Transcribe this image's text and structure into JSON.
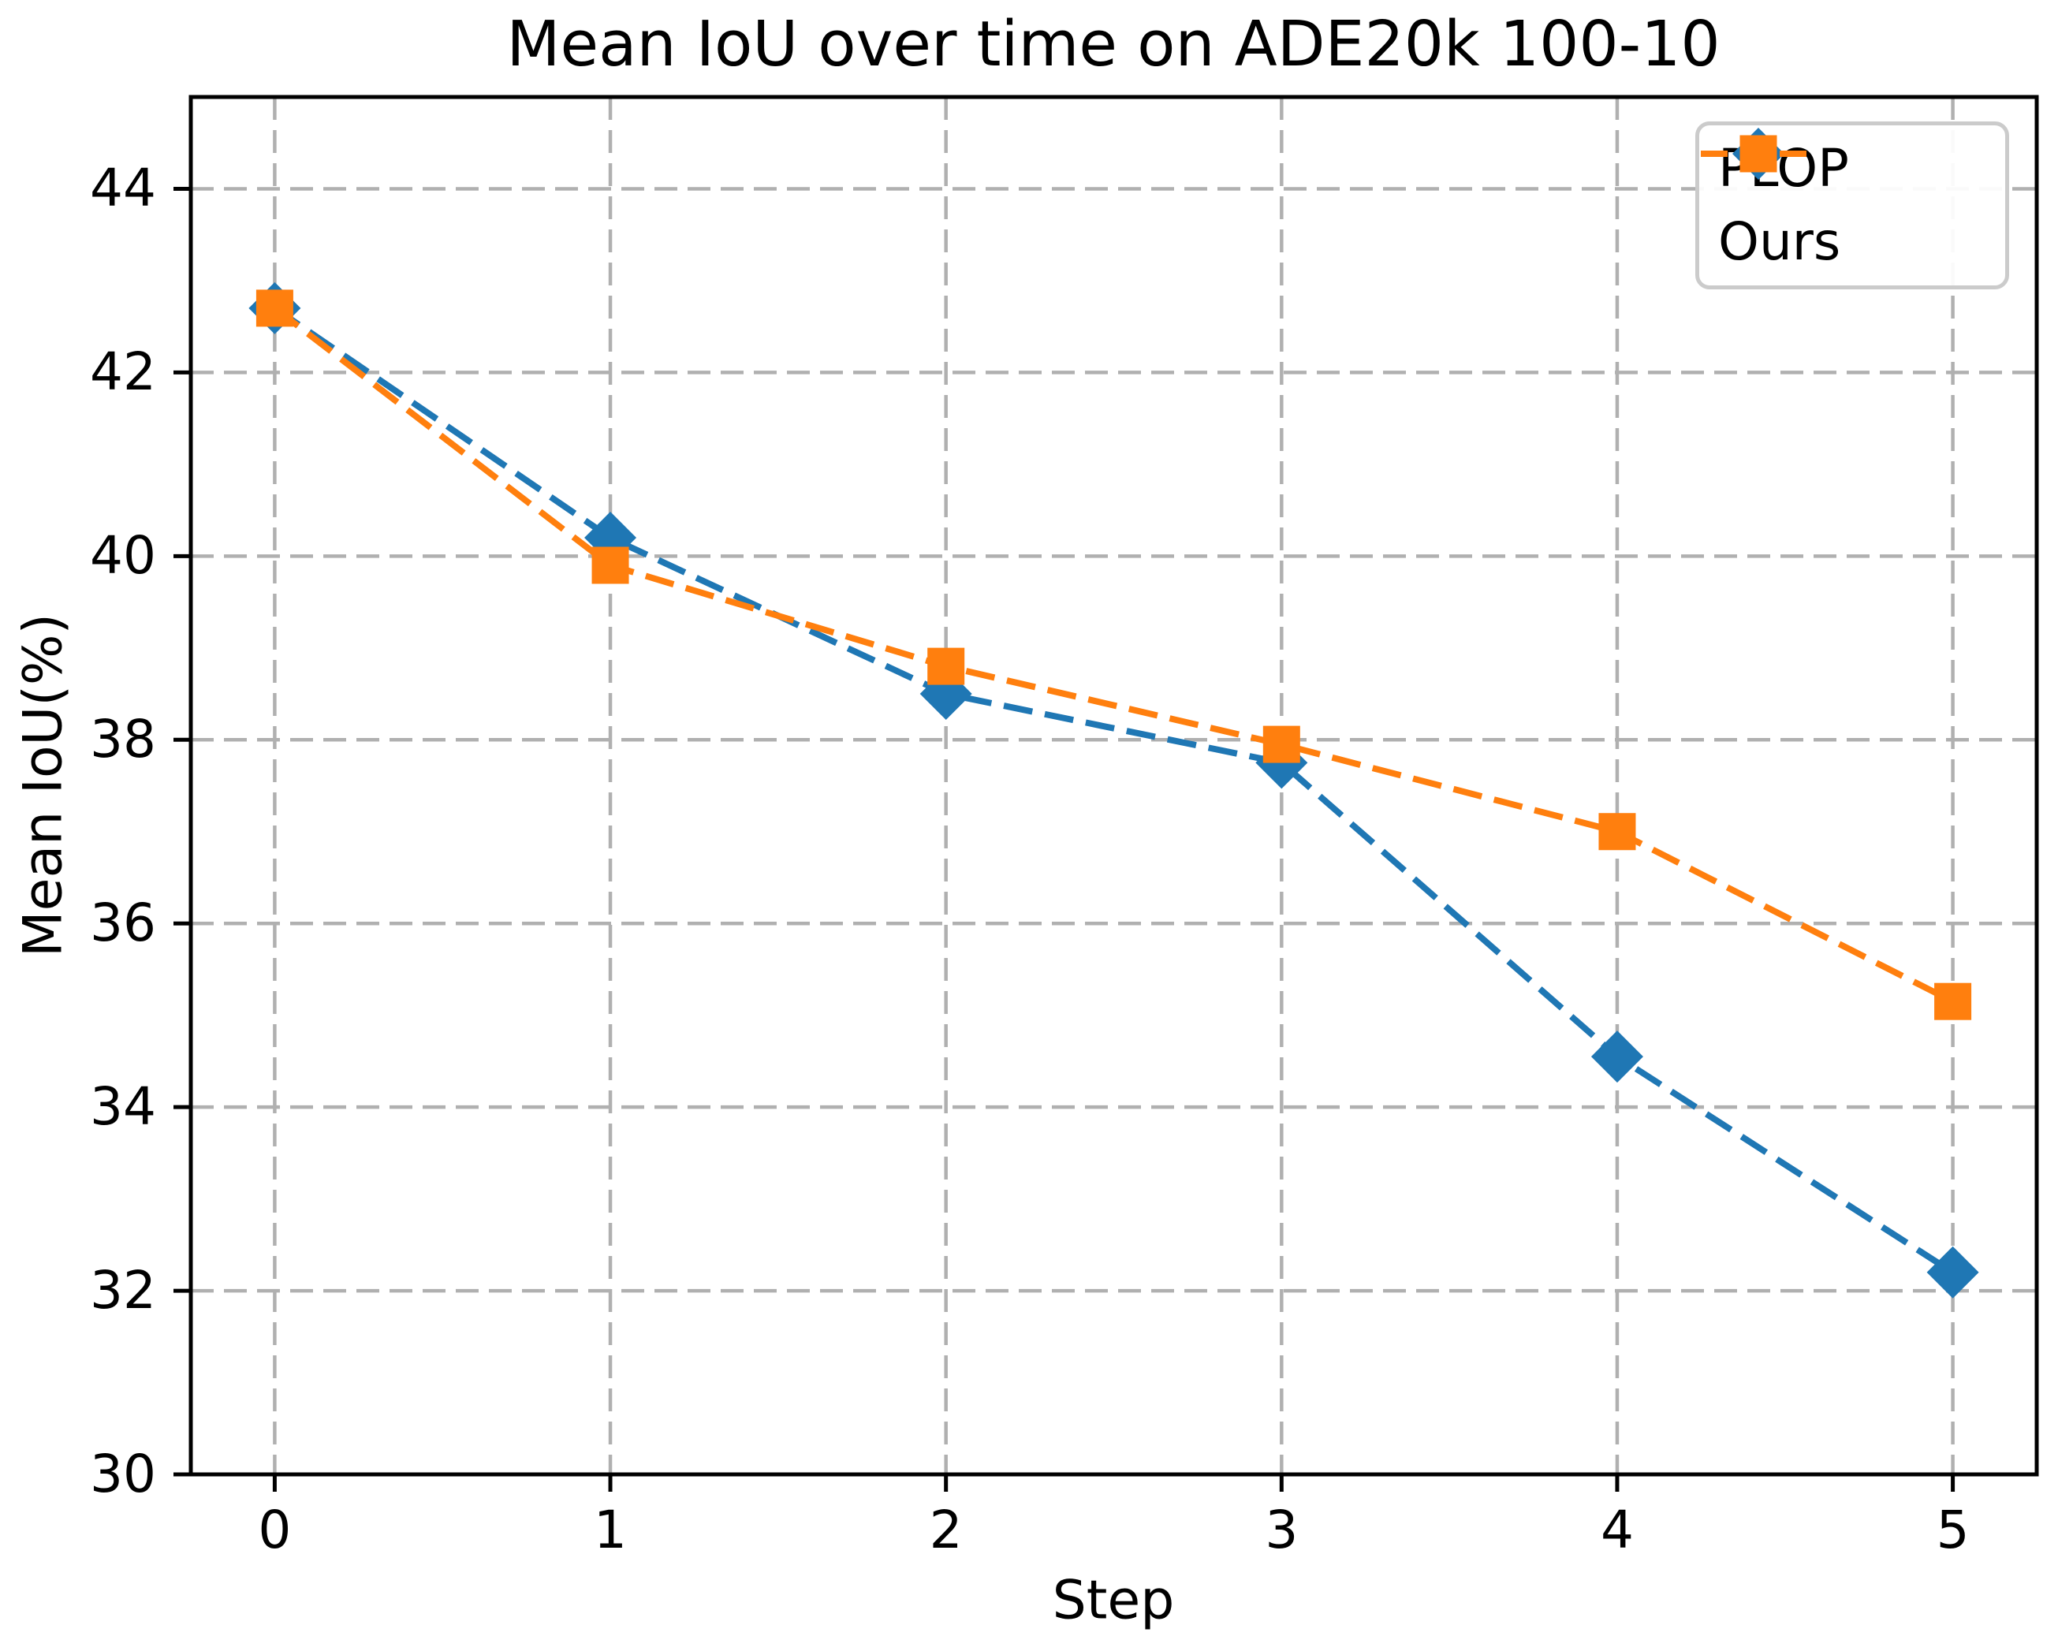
{
  "figure": {
    "background": "#ffffff"
  },
  "chart_data": {
    "type": "line",
    "title": "Mean IoU over time on ADE20k 100-10",
    "xlabel": "Step",
    "ylabel": "Mean IoU(%)",
    "x": [
      0,
      1,
      2,
      3,
      4,
      5
    ],
    "series": [
      {
        "name": "PLOP",
        "color": "#1f77b4",
        "marker": "diamond",
        "linestyle": "dashed",
        "values": [
          42.7,
          40.2,
          38.5,
          37.75,
          34.55,
          32.2
        ]
      },
      {
        "name": "Ours",
        "color": "#ff7f0e",
        "marker": "square",
        "linestyle": "dashed",
        "values": [
          42.7,
          39.9,
          38.8,
          37.95,
          37.0,
          35.15
        ]
      }
    ],
    "xlim": [
      -0.25,
      5.25
    ],
    "ylim": [
      30,
      45
    ],
    "xticks": [
      0,
      1,
      2,
      3,
      4,
      5
    ],
    "yticks": [
      30,
      32,
      34,
      36,
      38,
      40,
      42,
      44
    ],
    "grid": true,
    "grid_color": "#b0b0b0",
    "axis_color": "#000000",
    "legend_position": "upper right"
  }
}
